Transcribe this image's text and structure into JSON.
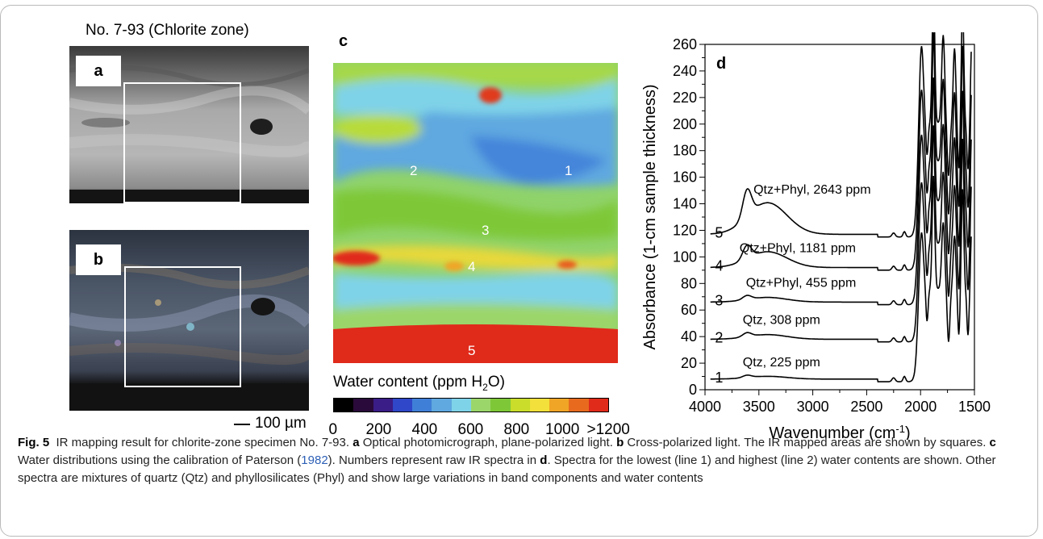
{
  "figure": {
    "photo_title": "No. 7-93 (Chlorite zone)",
    "panel_a_label": "a",
    "panel_b_label": "b",
    "panel_c_label": "c",
    "panel_d_label": "d",
    "scale_bar_label": "100 µm",
    "map_points": [
      "1",
      "2",
      "3",
      "4",
      "5"
    ],
    "colorbar": {
      "title_prefix": "Water content (ppm H",
      "title_sub": "2",
      "title_suffix": "O)",
      "ticks": [
        "0",
        "200",
        "400",
        "600",
        "800",
        "1000",
        ">1200"
      ],
      "colors": [
        "#000000",
        "#2a0a3a",
        "#3b1d87",
        "#2f47c8",
        "#3f7fd8",
        "#5fa8e0",
        "#7fd3e8",
        "#9bd66a",
        "#7ec838",
        "#c9dd2a",
        "#f3e03a",
        "#f0a526",
        "#e86a1f",
        "#e02a1a"
      ]
    }
  },
  "chart_data": {
    "type": "line",
    "xlabel": "Wavenumber (cm",
    "xlabel_sup": "-1",
    "xlabel_end": ")",
    "ylabel": "Absorbance (1-cm sample thickness)",
    "xlim": [
      4000,
      1500
    ],
    "ylim": [
      0,
      260
    ],
    "x_ticks": [
      4000,
      3500,
      3000,
      2500,
      2000,
      1500
    ],
    "y_ticks": [
      0,
      20,
      40,
      60,
      80,
      100,
      120,
      140,
      160,
      180,
      200,
      220,
      240,
      260
    ],
    "series": [
      {
        "name": "1",
        "label": "Qtz, 225 ppm",
        "baseline": 8,
        "oh_peak": 3
      },
      {
        "name": "2",
        "label": "Qtz, 308 ppm",
        "baseline": 38,
        "oh_peak": 5
      },
      {
        "name": "3",
        "label": "Qtz+Phyl, 455 ppm",
        "baseline": 66,
        "oh_peak": 5
      },
      {
        "name": "4",
        "label": "Qtz+Phyl, 1181 ppm",
        "baseline": 92,
        "oh_peak": 17
      },
      {
        "name": "5",
        "label": "Qtz+Phyl, 2643 ppm",
        "baseline": 117,
        "oh_peak": 34
      }
    ]
  },
  "caption": {
    "fig_label": "Fig. 5",
    "t1": "IR mapping result for chlorite-zone specimen No. 7-93.",
    "a": "a",
    "t2": "Optical photomicrograph, plane-polarized light.",
    "b": "b",
    "t3": "Cross-polarized light. The IR mapped areas are shown by squares.",
    "c": "c",
    "t4": "Water distributions using the calibration of Paterson (",
    "cite": "1982",
    "t5": "). Numbers represent raw IR spectra in",
    "d": "d",
    "t6": ". Spectra for the lowest (line 1) and highest (line 2) water contents are shown. Other spectra are mixtures of quartz (Qtz) and phyllosilicates (Phyl) and show large variations in band components and water contents"
  }
}
